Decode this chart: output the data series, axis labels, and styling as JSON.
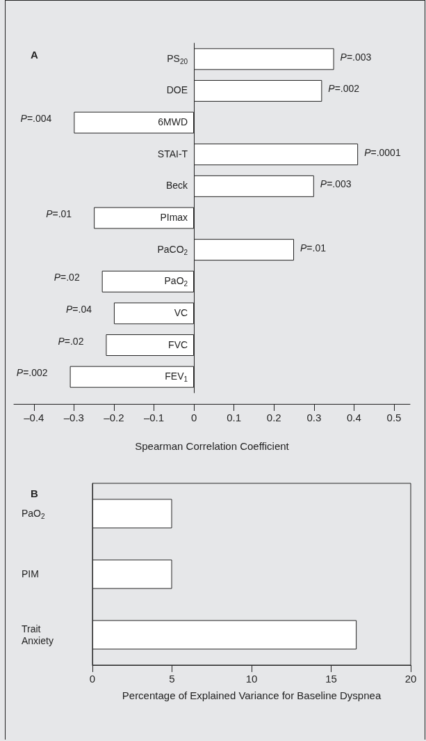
{
  "chart_data": [
    {
      "type": "bar",
      "orientation": "horizontal",
      "title": "A",
      "xlabel": "Spearman Correlation Coefficient",
      "categories": [
        "PS$_{20}$",
        "DOE",
        "6MWD",
        "STAI-T",
        "Beck",
        "PImax",
        "PaCO$_{2}$",
        "PaO$_{2}$",
        "VC",
        "FVC",
        "FEV$_{1}$"
      ],
      "values": [
        0.35,
        0.32,
        -0.3,
        0.41,
        0.3,
        -0.25,
        0.25,
        -0.23,
        -0.2,
        -0.22,
        -0.31
      ],
      "annotations": [
        {
          "text": "P=.003",
          "x": 0.35,
          "y": "PS$_{20}$"
        },
        {
          "text": "P=.002",
          "x": 0.32,
          "y": "DOE"
        },
        {
          "text": "P=.004",
          "x": -0.3,
          "y": "6MWD"
        },
        {
          "text": "P=.0001",
          "x": 0.41,
          "y": "STAI-T"
        },
        {
          "text": "P=.003",
          "x": 0.3,
          "y": "Beck"
        },
        {
          "text": "P=.01",
          "x": -0.25,
          "y": "PImax"
        },
        {
          "text": "P=.01",
          "x": 0.25,
          "y": "PaCO$_{2}$"
        },
        {
          "text": "P=.02",
          "x": -0.23,
          "y": "PaO$_{2}$"
        },
        {
          "text": "P=.04",
          "x": -0.2,
          "y": "VC"
        },
        {
          "text": "P=.02",
          "x": -0.22,
          "y": "FVC"
        },
        {
          "text": "P=.002",
          "x": -0.31,
          "y": "FEV$_{1}$"
        }
      ],
      "color": "#ffffff",
      "xlim": [
        -0.45,
        0.54
      ],
      "xticks": [
        {
          "value": -0.4,
          "label": "–0.4"
        },
        {
          "value": -0.3,
          "label": "–0.3"
        },
        {
          "value": -0.2,
          "label": "–0.2"
        },
        {
          "value": -0.1,
          "label": "–0.1"
        },
        0,
        0.1,
        0.2,
        0.3,
        0.4,
        0.5
      ]
    },
    {
      "type": "bar",
      "orientation": "horizontal",
      "title": "B",
      "xlabel": "Percentage of Explained Variance for Baseline Dyspnea",
      "categories": [
        "PaO$_{2}$",
        "PIM",
        "Trait Anxiety"
      ],
      "values": [
        5,
        5,
        16.6
      ],
      "color": "#ffffff",
      "xlim": [
        0,
        20
      ],
      "xticks": [
        0,
        5,
        10,
        15,
        20
      ]
    }
  ]
}
